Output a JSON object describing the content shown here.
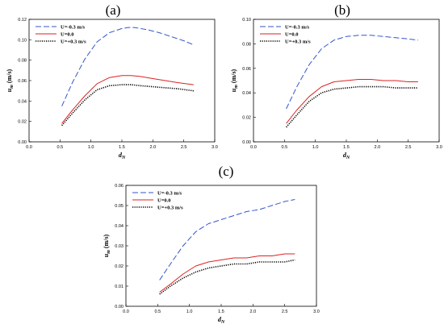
{
  "chart_data": [
    {
      "type": "line",
      "panel_label": "(a)",
      "xlabel": "d_N",
      "ylabel": "u_m (m/s)",
      "xlim": [
        0.0,
        3.0
      ],
      "ylim": [
        0.0,
        0.12
      ],
      "xticks": [
        "0.0",
        "0.5",
        "1.0",
        "1.5",
        "2.0",
        "2.5",
        "3.0"
      ],
      "yticks": [
        "0.00",
        "0.02",
        "0.04",
        "0.06",
        "0.08",
        "0.10",
        "0.12"
      ],
      "legend_position": "top-left",
      "series": [
        {
          "name": "U=-0.3 m/s",
          "color": "#3355cc",
          "style": "dashed",
          "x": [
            0.53,
            0.7,
            0.9,
            1.1,
            1.3,
            1.5,
            1.6,
            1.7,
            1.9,
            2.1,
            2.3,
            2.5,
            2.66
          ],
          "y": [
            0.035,
            0.058,
            0.081,
            0.098,
            0.107,
            0.111,
            0.112,
            0.112,
            0.11,
            0.107,
            0.103,
            0.099,
            0.095
          ]
        },
        {
          "name": "U=0.0",
          "color": "#dd2222",
          "style": "solid",
          "x": [
            0.53,
            0.7,
            0.9,
            1.1,
            1.3,
            1.5,
            1.65,
            1.8,
            2.0,
            2.2,
            2.4,
            2.66
          ],
          "y": [
            0.018,
            0.031,
            0.045,
            0.057,
            0.063,
            0.065,
            0.065,
            0.064,
            0.062,
            0.06,
            0.058,
            0.056
          ]
        },
        {
          "name": "U=+0.3 m/s",
          "color": "#000000",
          "style": "dotted",
          "x": [
            0.53,
            0.7,
            0.9,
            1.1,
            1.3,
            1.5,
            1.65,
            1.8,
            2.0,
            2.2,
            2.4,
            2.66
          ],
          "y": [
            0.016,
            0.028,
            0.041,
            0.051,
            0.055,
            0.056,
            0.056,
            0.055,
            0.054,
            0.053,
            0.052,
            0.05
          ]
        }
      ]
    },
    {
      "type": "line",
      "panel_label": "(b)",
      "xlabel": "d_N",
      "ylabel": "u_m (m/s)",
      "xlim": [
        0.0,
        3.0
      ],
      "ylim": [
        0.0,
        0.1
      ],
      "xticks": [
        "0.0",
        "0.5",
        "1.0",
        "1.5",
        "2.0",
        "2.5",
        "3.0"
      ],
      "yticks": [
        "0.00",
        "0.02",
        "0.04",
        "0.06",
        "0.08",
        "0.10"
      ],
      "legend_position": "top-left",
      "series": [
        {
          "name": "U=-0.3 m/s",
          "color": "#3355cc",
          "style": "dashed",
          "x": [
            0.53,
            0.7,
            0.9,
            1.1,
            1.3,
            1.5,
            1.7,
            1.9,
            2.1,
            2.3,
            2.5,
            2.66
          ],
          "y": [
            0.027,
            0.045,
            0.063,
            0.076,
            0.083,
            0.086,
            0.087,
            0.087,
            0.086,
            0.085,
            0.084,
            0.083
          ]
        },
        {
          "name": "U=0.0",
          "color": "#dd2222",
          "style": "solid",
          "x": [
            0.53,
            0.7,
            0.9,
            1.1,
            1.3,
            1.5,
            1.7,
            1.9,
            2.1,
            2.3,
            2.5,
            2.66
          ],
          "y": [
            0.015,
            0.026,
            0.037,
            0.045,
            0.049,
            0.05,
            0.051,
            0.051,
            0.05,
            0.05,
            0.049,
            0.049
          ]
        },
        {
          "name": "U=+0.3 m/s",
          "color": "#000000",
          "style": "dotted",
          "x": [
            0.53,
            0.7,
            0.9,
            1.1,
            1.3,
            1.5,
            1.7,
            1.9,
            2.1,
            2.3,
            2.5,
            2.66
          ],
          "y": [
            0.012,
            0.022,
            0.033,
            0.04,
            0.043,
            0.044,
            0.045,
            0.045,
            0.045,
            0.044,
            0.044,
            0.044
          ]
        }
      ]
    },
    {
      "type": "line",
      "panel_label": "(c)",
      "xlabel": "d_N",
      "ylabel": "u_m (m/s)",
      "xlim": [
        0.0,
        3.0
      ],
      "ylim": [
        0.0,
        0.06
      ],
      "xticks": [
        "0.0",
        "0.5",
        "1.0",
        "1.5",
        "2.0",
        "2.5",
        "3.0"
      ],
      "yticks": [
        "0.00",
        "0.01",
        "0.02",
        "0.03",
        "0.04",
        "0.05",
        "0.06"
      ],
      "legend_position": "top-left",
      "series": [
        {
          "name": "U=-0.3 m/s",
          "color": "#3355cc",
          "style": "dashed",
          "x": [
            0.53,
            0.7,
            0.9,
            1.1,
            1.3,
            1.5,
            1.7,
            1.9,
            2.1,
            2.3,
            2.5,
            2.66
          ],
          "y": [
            0.013,
            0.021,
            0.03,
            0.037,
            0.041,
            0.043,
            0.045,
            0.047,
            0.048,
            0.05,
            0.052,
            0.053
          ]
        },
        {
          "name": "U=0.0",
          "color": "#dd2222",
          "style": "solid",
          "x": [
            0.53,
            0.7,
            0.9,
            1.1,
            1.3,
            1.5,
            1.7,
            1.9,
            2.1,
            2.3,
            2.5,
            2.66
          ],
          "y": [
            0.007,
            0.011,
            0.016,
            0.02,
            0.022,
            0.023,
            0.024,
            0.024,
            0.025,
            0.025,
            0.026,
            0.026
          ]
        },
        {
          "name": "U=+0.3 m/s",
          "color": "#000000",
          "style": "dotted",
          "x": [
            0.53,
            0.7,
            0.9,
            1.1,
            1.3,
            1.5,
            1.7,
            1.9,
            2.1,
            2.3,
            2.5,
            2.66
          ],
          "y": [
            0.006,
            0.01,
            0.014,
            0.017,
            0.019,
            0.02,
            0.021,
            0.021,
            0.022,
            0.022,
            0.022,
            0.023
          ]
        }
      ]
    }
  ]
}
